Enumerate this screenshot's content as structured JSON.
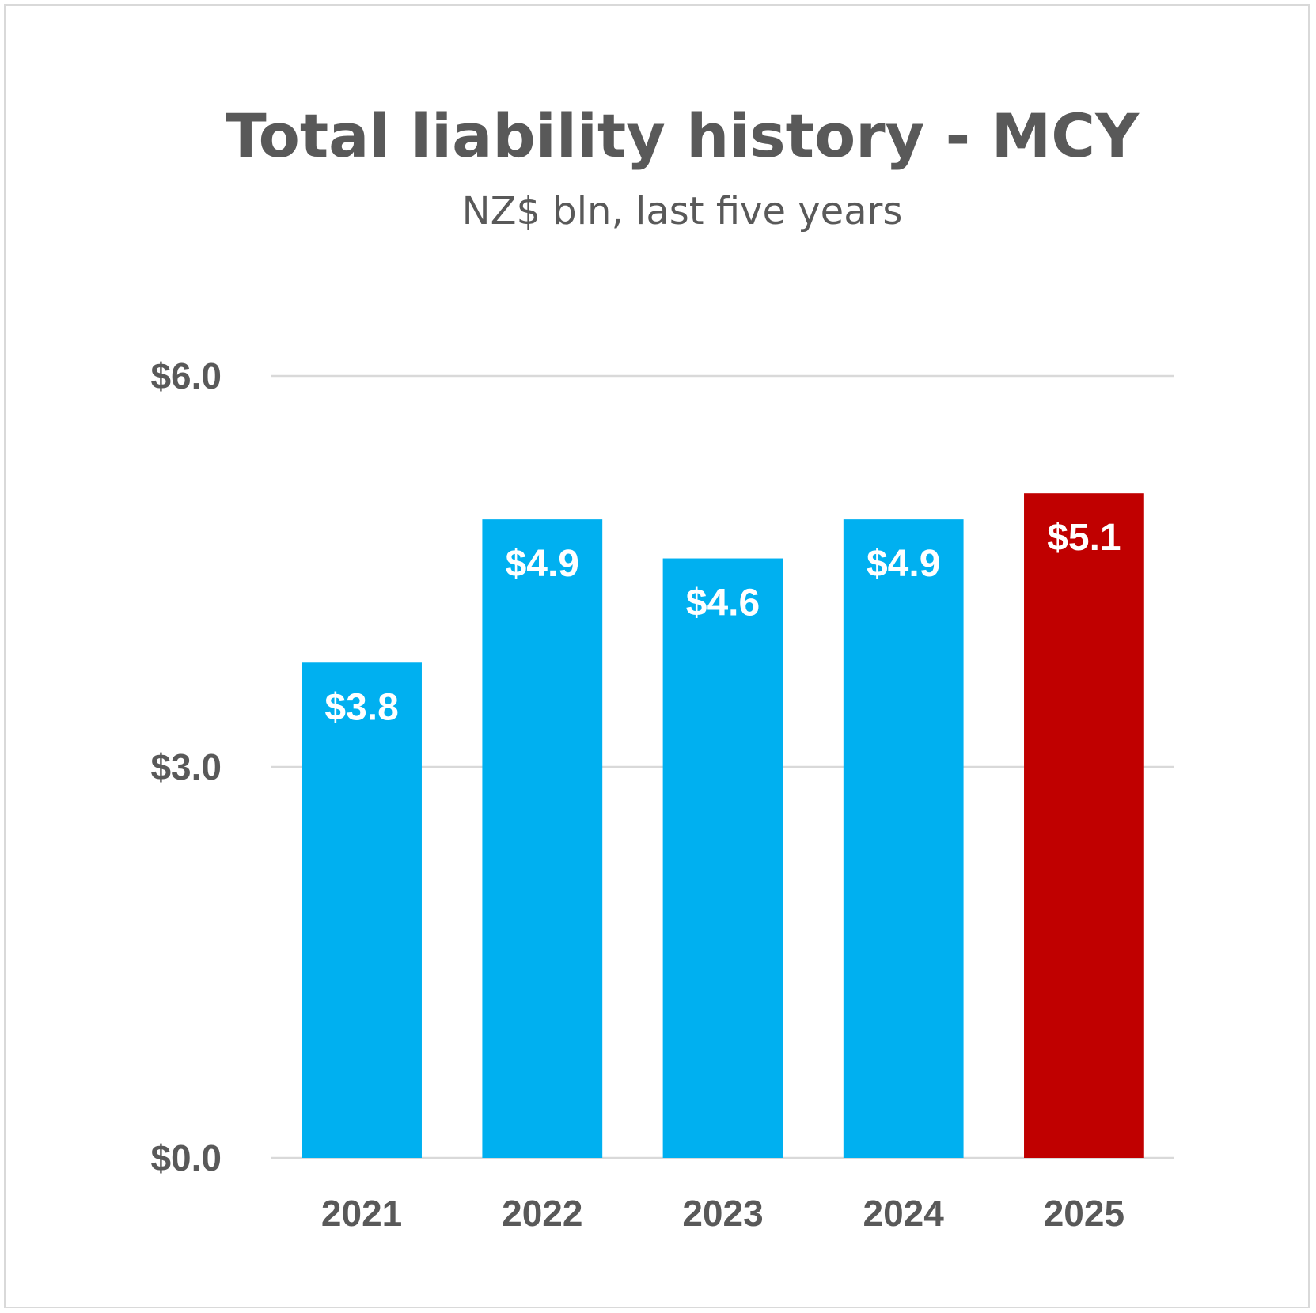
{
  "chart_data": {
    "type": "bar",
    "title": "Total liability history - MCY",
    "subtitle": "NZ$ bln, last five years",
    "categories": [
      "2021",
      "2022",
      "2023",
      "2024",
      "2025"
    ],
    "values": [
      3.8,
      4.9,
      4.6,
      4.9,
      5.1
    ],
    "value_labels": [
      "$3.8",
      "$4.9",
      "$4.6",
      "$4.9",
      "$5.1"
    ],
    "bar_colors": [
      "#00b0f0",
      "#00b0f0",
      "#00b0f0",
      "#00b0f0",
      "#c00000"
    ],
    "ylim": [
      0,
      6
    ],
    "yticks": [
      0,
      3,
      6
    ],
    "ytick_labels": [
      "$0.0",
      "$3.0",
      "$6.0"
    ],
    "grid": true,
    "legend": "none"
  }
}
